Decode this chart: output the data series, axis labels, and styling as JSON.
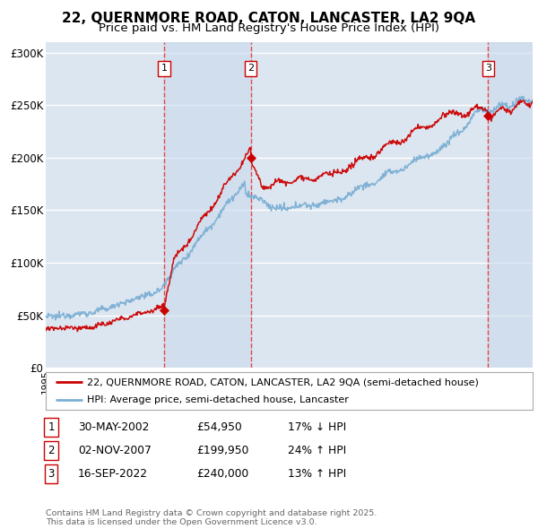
{
  "title": "22, QUERNMORE ROAD, CATON, LANCASTER, LA2 9QA",
  "subtitle": "Price paid vs. HM Land Registry's House Price Index (HPI)",
  "ylim": [
    0,
    310000
  ],
  "yticks": [
    0,
    50000,
    100000,
    150000,
    200000,
    250000,
    300000
  ],
  "ytick_labels": [
    "£0",
    "£50K",
    "£100K",
    "£150K",
    "£200K",
    "£250K",
    "£300K"
  ],
  "background_color": "#ffffff",
  "plot_bg_color": "#dce6f0",
  "grid_color": "#ffffff",
  "red_line_color": "#cc0000",
  "blue_line_color": "#7bafd4",
  "sale_points": [
    {
      "date_num": 2002.41,
      "price": 54950,
      "label": "1"
    },
    {
      "date_num": 2007.84,
      "price": 199950,
      "label": "2"
    },
    {
      "date_num": 2022.71,
      "price": 240000,
      "label": "3"
    }
  ],
  "vline_color": "#ee3333",
  "shade_color": "#c8d8ec",
  "shade_alpha": 0.55,
  "legend_entries": [
    "22, QUERNMORE ROAD, CATON, LANCASTER, LA2 9QA (semi-detached house)",
    "HPI: Average price, semi-detached house, Lancaster"
  ],
  "table_rows": [
    {
      "num": "1",
      "date": "30-MAY-2002",
      "price": "£54,950",
      "hpi": "17% ↓ HPI"
    },
    {
      "num": "2",
      "date": "02-NOV-2007",
      "price": "£199,950",
      "hpi": "24% ↑ HPI"
    },
    {
      "num": "3",
      "date": "16-SEP-2022",
      "price": "£240,000",
      "hpi": "13% ↑ HPI"
    }
  ],
  "footer": "Contains HM Land Registry data © Crown copyright and database right 2025.\nThis data is licensed under the Open Government Licence v3.0.",
  "title_fontsize": 11,
  "subtitle_fontsize": 9.5,
  "xmin": 1995,
  "xmax": 2025.5
}
